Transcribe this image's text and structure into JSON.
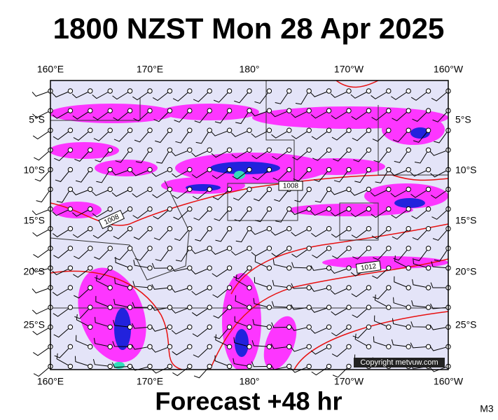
{
  "header": {
    "title": "1800 NZST Mon 28 Apr 2025"
  },
  "map": {
    "lon_labels_top": [
      "160°E",
      "170°E",
      "180°",
      "170°W",
      "160°W"
    ],
    "lon_labels_bottom": [
      "160°E",
      "170°E",
      "180°",
      "170°W",
      "160°W"
    ],
    "lat_labels_left": [
      "5°S",
      "10°S",
      "15°S",
      "20°S",
      "25°S"
    ],
    "lat_labels_right": [
      "5°S",
      "10°S",
      "15°S",
      "20°S",
      "25°S"
    ],
    "isobar_labels": [
      "1008",
      "1008",
      "1012"
    ],
    "copyright": "Copyright metvuw.com"
  },
  "footer": {
    "caption": "Forecast +48 hr",
    "code": "M3"
  }
}
